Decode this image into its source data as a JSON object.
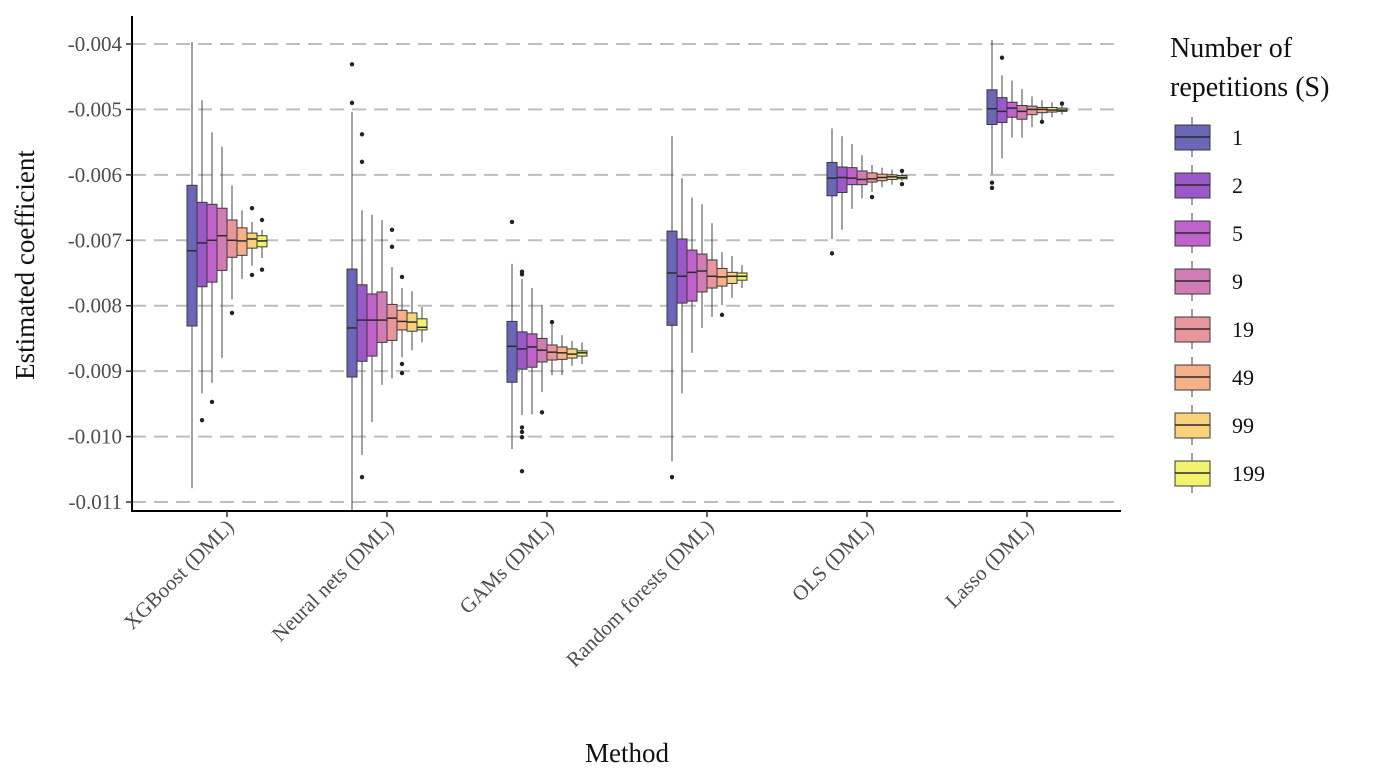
{
  "chart_data": {
    "type": "boxplot",
    "title": "",
    "xlabel": "Method",
    "ylabel": "Estimated coefficient",
    "values_scale": 0.001,
    "values_note": "stats given as [lower_whisker, q1, median, q3, upper_whisker] in units of 0.001",
    "ylim": [
      -11.13,
      -3.57
    ],
    "yticks": [
      -4,
      -5,
      -6,
      -7,
      -8,
      -9,
      -10,
      -11
    ],
    "ytick_labels": [
      "-0.004",
      "-0.005",
      "-0.006",
      "-0.007",
      "-0.008",
      "-0.009",
      "-0.010",
      "-0.011"
    ],
    "grid": "horizontal dashed major",
    "categories": [
      "XGBoost (DML)",
      "Neural nets (DML)",
      "GAMs (DML)",
      "Random forests (DML)",
      "OLS (DML)",
      "Lasso (DML)"
    ],
    "legend": {
      "title_line1": "Number of",
      "title_line2": "repetitions (S)",
      "placement": "right",
      "entries": [
        "1",
        "2",
        "5",
        "9",
        "19",
        "49",
        "99",
        "199"
      ],
      "colors": [
        "#6a67b8",
        "#9a58c8",
        "#bf62cc",
        "#d27cb6",
        "#e8969b",
        "#f6b08a",
        "#fbd27c",
        "#f2f36c"
      ]
    },
    "groups": [
      {
        "method": "XGBoost (DML)",
        "boxes": [
          {
            "stats": [
              -10.79,
              -8.31,
              -7.16,
              -6.16,
              -3.97
            ],
            "outliers": []
          },
          {
            "stats": [
              -9.34,
              -7.71,
              -7.04,
              -6.42,
              -4.86
            ],
            "outliers": [
              -9.75
            ]
          },
          {
            "stats": [
              -9.18,
              -7.64,
              -7.0,
              -6.45,
              -5.35
            ],
            "outliers": [
              -9.47
            ]
          },
          {
            "stats": [
              -8.8,
              -7.46,
              -6.93,
              -6.51,
              -5.57
            ],
            "outliers": []
          },
          {
            "stats": [
              -7.9,
              -7.26,
              -7.0,
              -6.69,
              -6.16
            ],
            "outliers": [
              -8.11
            ]
          },
          {
            "stats": [
              -7.59,
              -7.23,
              -7.01,
              -6.81,
              -6.54
            ],
            "outliers": []
          },
          {
            "stats": [
              -7.39,
              -7.12,
              -6.98,
              -6.89,
              -6.72
            ],
            "outliers": [
              -6.51,
              -7.53
            ]
          },
          {
            "stats": [
              -7.27,
              -7.1,
              -7.01,
              -6.93,
              -6.84
            ],
            "outliers": [
              -6.69,
              -7.45
            ]
          }
        ]
      },
      {
        "method": "Neural nets (DML)",
        "boxes": [
          {
            "stats": [
              -11.13,
              -9.09,
              -8.34,
              -7.44,
              -5.04
            ],
            "outliers": [
              -4.31,
              -4.9
            ]
          },
          {
            "stats": [
              -10.28,
              -8.85,
              -8.22,
              -7.68,
              -6.54
            ],
            "outliers": [
              -5.38,
              -5.8,
              -10.62
            ]
          },
          {
            "stats": [
              -9.78,
              -8.77,
              -8.22,
              -7.82,
              -6.61
            ],
            "outliers": []
          },
          {
            "stats": [
              -9.21,
              -8.56,
              -8.22,
              -7.79,
              -6.69
            ],
            "outliers": []
          },
          {
            "stats": [
              -9.11,
              -8.53,
              -8.19,
              -7.98,
              -7.41
            ],
            "outliers": [
              -6.84,
              -7.1
            ]
          },
          {
            "stats": [
              -8.79,
              -8.37,
              -8.24,
              -8.07,
              -7.73
            ],
            "outliers": [
              -7.56,
              -8.89,
              -9.03
            ]
          },
          {
            "stats": [
              -8.68,
              -8.39,
              -8.25,
              -8.11,
              -7.78
            ],
            "outliers": []
          },
          {
            "stats": [
              -8.56,
              -8.37,
              -8.33,
              -8.2,
              -8.02
            ],
            "outliers": []
          }
        ]
      },
      {
        "method": "GAMs (DML)",
        "boxes": [
          {
            "stats": [
              -10.19,
              -9.17,
              -8.62,
              -8.24,
              -7.36
            ],
            "outliers": [
              -6.72
            ]
          },
          {
            "stats": [
              -9.67,
              -8.97,
              -8.66,
              -8.4,
              -7.59
            ],
            "outliers": [
              -7.48,
              -7.52,
              -9.86,
              -9.93,
              -10.01,
              -10.53
            ]
          },
          {
            "stats": [
              -9.66,
              -8.94,
              -8.63,
              -8.43,
              -7.73
            ],
            "outliers": []
          },
          {
            "stats": [
              -9.32,
              -8.86,
              -8.68,
              -8.5,
              -7.99
            ],
            "outliers": [
              -9.63
            ]
          },
          {
            "stats": [
              -9.06,
              -8.83,
              -8.71,
              -8.6,
              -8.24
            ],
            "outliers": [
              -8.25
            ]
          },
          {
            "stats": [
              -9.06,
              -8.82,
              -8.72,
              -8.63,
              -8.45
            ],
            "outliers": []
          },
          {
            "stats": [
              -8.92,
              -8.8,
              -8.74,
              -8.66,
              -8.54
            ],
            "outliers": []
          },
          {
            "stats": [
              -8.89,
              -8.77,
              -8.72,
              -8.69,
              -8.56
            ],
            "outliers": []
          }
        ]
      },
      {
        "method": "Random forests (DML)",
        "boxes": [
          {
            "stats": [
              -10.38,
              -8.3,
              -7.5,
              -6.86,
              -5.41
            ],
            "outliers": [
              -10.62
            ]
          },
          {
            "stats": [
              -9.34,
              -7.96,
              -7.55,
              -6.98,
              -6.05
            ],
            "outliers": []
          },
          {
            "stats": [
              -8.72,
              -7.93,
              -7.49,
              -7.15,
              -6.35
            ],
            "outliers": []
          },
          {
            "stats": [
              -8.34,
              -7.79,
              -7.47,
              -7.21,
              -6.45
            ],
            "outliers": []
          },
          {
            "stats": [
              -8.17,
              -7.73,
              -7.55,
              -7.3,
              -6.74
            ],
            "outliers": []
          },
          {
            "stats": [
              -7.99,
              -7.7,
              -7.56,
              -7.43,
              -7.18
            ],
            "outliers": [
              -8.14
            ]
          },
          {
            "stats": [
              -7.88,
              -7.66,
              -7.55,
              -7.49,
              -7.24
            ],
            "outliers": []
          },
          {
            "stats": [
              -7.73,
              -7.61,
              -7.55,
              -7.5,
              -7.38
            ],
            "outliers": []
          }
        ]
      },
      {
        "method": "OLS (DML)",
        "boxes": [
          {
            "stats": [
              -6.98,
              -6.32,
              -6.05,
              -5.81,
              -5.29
            ],
            "outliers": [
              -7.2
            ]
          },
          {
            "stats": [
              -6.84,
              -6.27,
              -6.04,
              -5.88,
              -5.41
            ],
            "outliers": []
          },
          {
            "stats": [
              -6.52,
              -6.15,
              -6.05,
              -5.89,
              -5.53
            ],
            "outliers": []
          },
          {
            "stats": [
              -6.36,
              -6.15,
              -6.07,
              -5.94,
              -5.7
            ],
            "outliers": []
          },
          {
            "stats": [
              -6.26,
              -6.11,
              -6.06,
              -5.97,
              -5.85
            ],
            "outliers": [
              -6.34
            ]
          },
          {
            "stats": [
              -6.19,
              -6.09,
              -6.04,
              -5.99,
              -5.89
            ],
            "outliers": []
          },
          {
            "stats": [
              -6.15,
              -6.07,
              -6.03,
              -6.0,
              -5.92
            ],
            "outliers": []
          },
          {
            "stats": [
              -6.09,
              -6.06,
              -6.04,
              -6.01,
              -5.98
            ],
            "outliers": [
              -5.94,
              -6.14
            ]
          }
        ]
      },
      {
        "method": "Lasso (DML)",
        "boxes": [
          {
            "stats": [
              -5.99,
              -5.23,
              -4.99,
              -4.7,
              -3.94
            ],
            "outliers": [
              -6.12,
              -6.2
            ]
          },
          {
            "stats": [
              -5.75,
              -5.2,
              -5.03,
              -4.82,
              -4.48
            ],
            "outliers": [
              -4.21
            ]
          },
          {
            "stats": [
              -5.43,
              -5.12,
              -4.98,
              -4.89,
              -4.56
            ],
            "outliers": []
          },
          {
            "stats": [
              -5.43,
              -5.15,
              -5.03,
              -4.94,
              -4.69
            ],
            "outliers": []
          },
          {
            "stats": [
              -5.27,
              -5.08,
              -5.0,
              -4.95,
              -4.8
            ],
            "outliers": []
          },
          {
            "stats": [
              -5.16,
              -5.05,
              -5.0,
              -4.97,
              -4.86
            ],
            "outliers": [
              -5.19
            ]
          },
          {
            "stats": [
              -5.12,
              -5.04,
              -5.01,
              -4.97,
              -4.89
            ],
            "outliers": []
          },
          {
            "stats": [
              -5.08,
              -5.03,
              -5.01,
              -4.98,
              -4.93
            ],
            "outliers": [
              -4.91
            ]
          }
        ]
      }
    ]
  }
}
